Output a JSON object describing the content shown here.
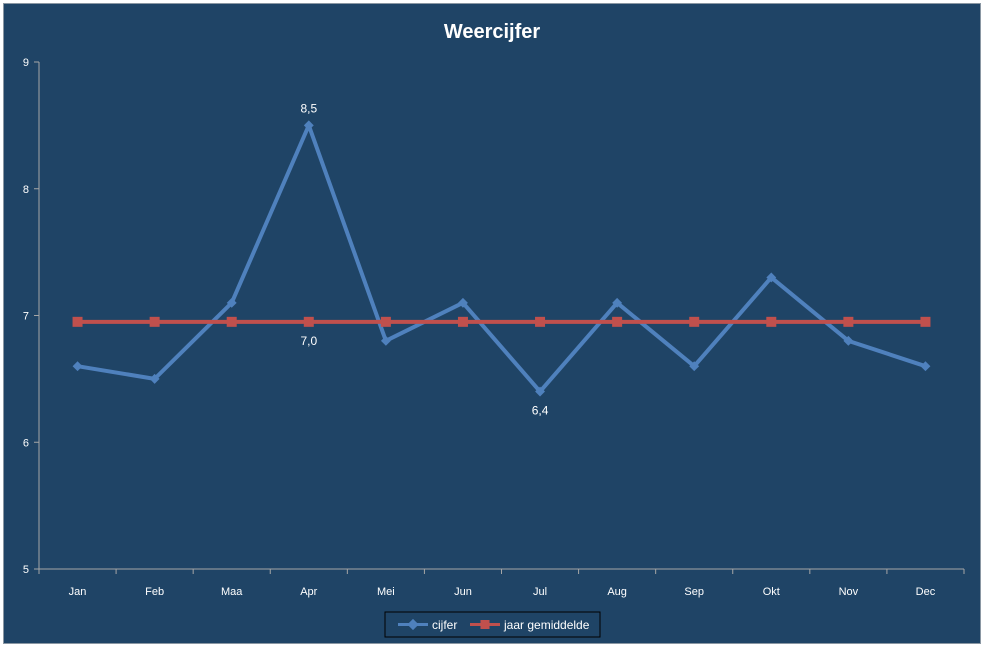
{
  "chart_data": {
    "type": "line",
    "title": "Weercijfer",
    "xlabel": "",
    "ylabel": "",
    "categories": [
      "Jan",
      "Feb",
      "Maa",
      "Apr",
      "Mei",
      "Jun",
      "Jul",
      "Aug",
      "Sep",
      "Okt",
      "Nov",
      "Dec"
    ],
    "ylim": [
      5,
      9
    ],
    "yticks": [
      5,
      6,
      7,
      8,
      9
    ],
    "grid": false,
    "legend_position": "bottom",
    "series": [
      {
        "name": "cijfer",
        "color": "#4f81bd",
        "marker": "diamond",
        "values": [
          6.6,
          6.5,
          7.1,
          8.5,
          6.8,
          7.1,
          6.4,
          7.1,
          6.6,
          7.3,
          6.8,
          6.6
        ]
      },
      {
        "name": "jaar gemiddelde",
        "color": "#c0504d",
        "marker": "square",
        "values": [
          6.95,
          6.95,
          6.95,
          6.95,
          6.95,
          6.95,
          6.95,
          6.95,
          6.95,
          6.95,
          6.95,
          6.95
        ]
      }
    ],
    "data_labels": [
      {
        "series": 0,
        "index": 3,
        "text": "8,5",
        "position": "above"
      },
      {
        "series": 1,
        "index": 3,
        "text": "7,0",
        "position": "below"
      },
      {
        "series": 0,
        "index": 6,
        "text": "6,4",
        "position": "below"
      }
    ],
    "background_color": "#1f4466",
    "axis_color": "#a6a6a6",
    "text_color": "#ffffff"
  }
}
